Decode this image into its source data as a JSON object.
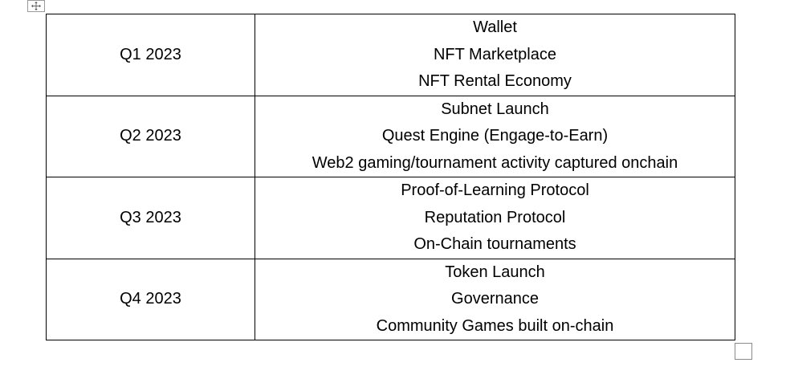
{
  "roadmap": {
    "rows": [
      {
        "quarter": "Q1 2023",
        "items": [
          "Wallet",
          "NFT Marketplace",
          "NFT Rental Economy"
        ]
      },
      {
        "quarter": "Q2 2023",
        "items": [
          "Subnet Launch",
          "Quest Engine (Engage-to-Earn)",
          "Web2 gaming/tournament activity captured onchain"
        ]
      },
      {
        "quarter": "Q3 2023",
        "items": [
          "Proof-of-Learning Protocol",
          "Reputation Protocol",
          "On-Chain tournaments"
        ]
      },
      {
        "quarter": "Q4 2023",
        "items": [
          "Token Launch",
          "Governance",
          "Community Games built on-chain"
        ]
      }
    ]
  },
  "icons": {
    "move_handle": "move-arrows-icon",
    "resize_handle": "resize-square-icon"
  },
  "colors": {
    "border": "#000000",
    "handle_border": "#9a9a9a",
    "background": "#ffffff"
  }
}
